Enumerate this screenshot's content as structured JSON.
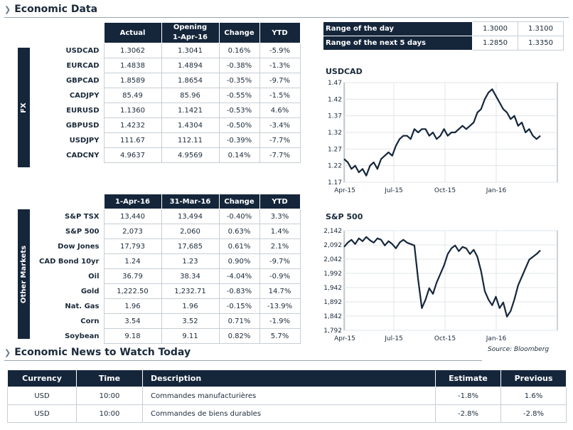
{
  "sections": {
    "economic_data": "Economic Data",
    "news": "Economic News to Watch Today"
  },
  "fx": {
    "side_label": "FX",
    "headers": [
      "Actual",
      "Opening\n1-Apr-16",
      "Change",
      "YTD"
    ],
    "header_actual": "Actual",
    "header_open_l1": "Opening",
    "header_open_l2": "1-Apr-16",
    "header_change": "Change",
    "header_ytd": "YTD",
    "rows": [
      {
        "name": "USDCAD",
        "actual": "1.3062",
        "open": "1.3041",
        "change": "0.16%",
        "ytd": "-5.9%"
      },
      {
        "name": "EURCAD",
        "actual": "1.4838",
        "open": "1.4894",
        "change": "-0.38%",
        "ytd": "-1.3%"
      },
      {
        "name": "GBPCAD",
        "actual": "1.8589",
        "open": "1.8654",
        "change": "-0.35%",
        "ytd": "-9.7%"
      },
      {
        "name": "CADJPY",
        "actual": "85.49",
        "open": "85.96",
        "change": "-0.55%",
        "ytd": "-1.5%"
      },
      {
        "name": "EURUSD",
        "actual": "1.1360",
        "open": "1.1421",
        "change": "-0.53%",
        "ytd": "4.6%"
      },
      {
        "name": "GBPUSD",
        "actual": "1.4232",
        "open": "1.4304",
        "change": "-0.50%",
        "ytd": "-3.4%"
      },
      {
        "name": "USDJPY",
        "actual": "111.67",
        "open": "112.11",
        "change": "-0.39%",
        "ytd": "-7.7%"
      },
      {
        "name": "CADCNY",
        "actual": "4.9637",
        "open": "4.9569",
        "change": "0.14%",
        "ytd": "-7.7%"
      }
    ]
  },
  "other": {
    "side_label": "Other Markets",
    "header_d1": "1-Apr-16",
    "header_d2": "31-Mar-16",
    "header_change": "Change",
    "header_ytd": "YTD",
    "rows": [
      {
        "name": "S&P TSX",
        "d1": "13,440",
        "d2": "13,494",
        "change": "-0.40%",
        "ytd": "3.3%"
      },
      {
        "name": "S&P 500",
        "d1": "2,073",
        "d2": "2,060",
        "change": "0.63%",
        "ytd": "1.4%"
      },
      {
        "name": "Dow Jones",
        "d1": "17,793",
        "d2": "17,685",
        "change": "0.61%",
        "ytd": "2.1%"
      },
      {
        "name": "CAD Bond 10yr",
        "d1": "1.24",
        "d2": "1.23",
        "change": "0.90%",
        "ytd": "-9.7%"
      },
      {
        "name": "Oil",
        "d1": "36.79",
        "d2": "38.34",
        "change": "-4.04%",
        "ytd": "-0.9%"
      },
      {
        "name": "Gold",
        "d1": "1,222.50",
        "d2": "1,232.71",
        "change": "-0.83%",
        "ytd": "14.7%"
      },
      {
        "name": "Nat. Gas",
        "d1": "1.96",
        "d2": "1.96",
        "change": "-0.15%",
        "ytd": "-13.9%"
      },
      {
        "name": "Corn",
        "d1": "3.54",
        "d2": "3.52",
        "change": "0.71%",
        "ytd": "-1.9%"
      },
      {
        "name": "Soybean",
        "d1": "9.18",
        "d2": "9.11",
        "change": "0.82%",
        "ytd": "5.7%"
      }
    ]
  },
  "range": {
    "rows": [
      {
        "label": "Range of the day",
        "low": "1.3000",
        "high": "1.3100"
      },
      {
        "label": "Range of the next 5 days",
        "low": "1.2850",
        "high": "1.3350"
      }
    ]
  },
  "chart_data": [
    {
      "type": "line",
      "title": "USDCAD",
      "xlabel": "",
      "ylabel": "",
      "xticks": [
        "Apr-15",
        "Jul-15",
        "Oct-15",
        "Jan-16"
      ],
      "yticks": [
        "1.47",
        "1.42",
        "1.37",
        "1.32",
        "1.27",
        "1.22",
        "1.17"
      ],
      "ylim": [
        1.17,
        1.47
      ],
      "grid": true,
      "series": [
        {
          "values": [
            1.24,
            1.23,
            1.21,
            1.22,
            1.2,
            1.21,
            1.19,
            1.22,
            1.23,
            1.21,
            1.24,
            1.25,
            1.26,
            1.25,
            1.28,
            1.3,
            1.31,
            1.31,
            1.3,
            1.33,
            1.32,
            1.33,
            1.33,
            1.31,
            1.32,
            1.3,
            1.31,
            1.33,
            1.31,
            1.32,
            1.32,
            1.33,
            1.34,
            1.33,
            1.34,
            1.35,
            1.38,
            1.39,
            1.42,
            1.44,
            1.45,
            1.43,
            1.41,
            1.39,
            1.38,
            1.36,
            1.37,
            1.34,
            1.35,
            1.32,
            1.33,
            1.31,
            1.3,
            1.31
          ]
        }
      ]
    },
    {
      "type": "line",
      "title": "S&P 500",
      "xlabel": "",
      "ylabel": "",
      "xticks": [
        "Apr-15",
        "Jul-15",
        "Oct-15",
        "Jan-16"
      ],
      "yticks": [
        "2,142",
        "2,092",
        "2,042",
        "1,992",
        "1,942",
        "1,892",
        "1,842",
        "1,792"
      ],
      "ylim": [
        1792,
        2142
      ],
      "grid": true,
      "series": [
        {
          "values": [
            2085,
            2100,
            2110,
            2095,
            2115,
            2105,
            2120,
            2108,
            2100,
            2115,
            2110,
            2090,
            2105,
            2095,
            2080,
            2100,
            2110,
            2100,
            2095,
            2090,
            1970,
            1870,
            1900,
            1940,
            1920,
            1960,
            1990,
            2020,
            2060,
            2080,
            2090,
            2070,
            2085,
            2080,
            2060,
            2075,
            2050,
            2000,
            1930,
            1900,
            1880,
            1910,
            1870,
            1890,
            1840,
            1860,
            1900,
            1950,
            1980,
            2010,
            2040,
            2050,
            2060,
            2073
          ]
        }
      ]
    }
  ],
  "news": {
    "headers": {
      "currency": "Currency",
      "time": "Time",
      "description": "Description",
      "estimate": "Estimate",
      "previous": "Previous"
    },
    "rows": [
      {
        "currency": "USD",
        "time": "10:00",
        "description": "Commandes manufacturières",
        "estimate": "-1.8%",
        "previous": "1.6%"
      },
      {
        "currency": "USD",
        "time": "10:00",
        "description": "Commandes de biens durables",
        "estimate": "-2.8%",
        "previous": "-2.8%"
      }
    ]
  },
  "source": "Source: Bloomberg",
  "colors": {
    "navy": "#15263b",
    "positive": "#1f9a3a",
    "negative": "#d0202a"
  }
}
